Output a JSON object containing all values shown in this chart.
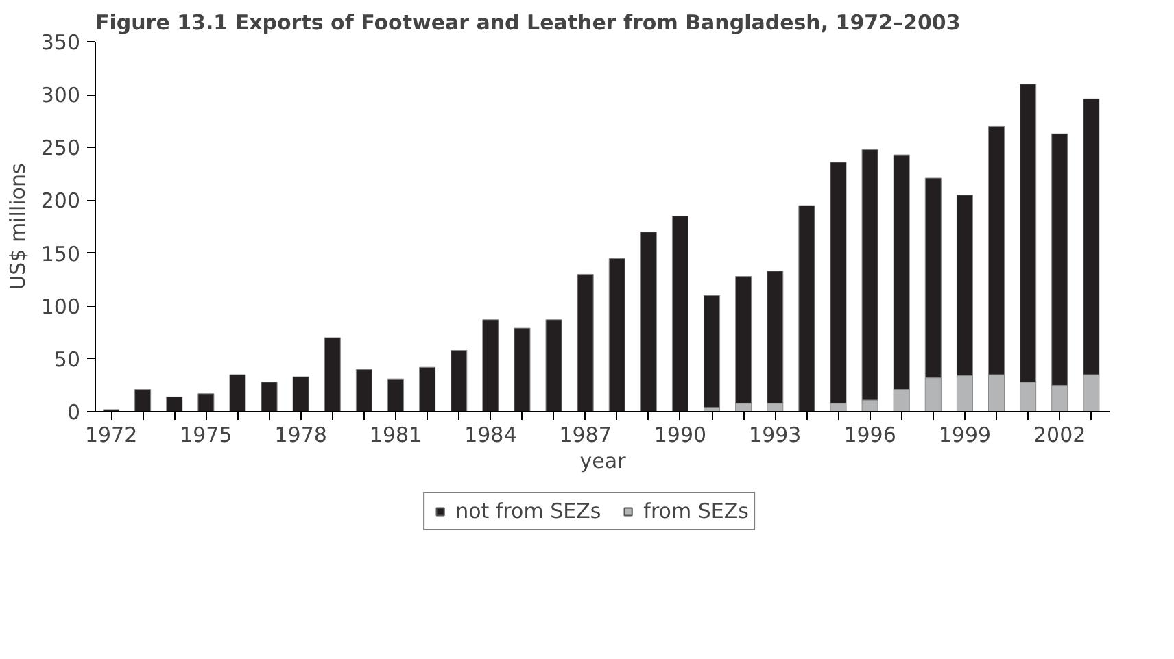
{
  "chart_data": {
    "type": "bar",
    "title": "Figure 13.1  Exports of Footwear and Leather from Bangladesh, 1972–2003",
    "xlabel": "year",
    "ylabel": "US$ millions",
    "stacked": true,
    "legend": "bottom",
    "grid": false,
    "x": [
      1972,
      1973,
      1974,
      1975,
      1976,
      1977,
      1978,
      1979,
      1980,
      1981,
      1982,
      1983,
      1984,
      1985,
      1986,
      1987,
      1988,
      1989,
      1990,
      1991,
      1992,
      1993,
      1994,
      1995,
      1996,
      1997,
      1998,
      1999,
      2000,
      2001,
      2002,
      2003
    ],
    "xlim": [
      1971.5,
      2003.6
    ],
    "xticks": [
      1972,
      {
        "value": 1973,
        "label": null
      },
      {
        "value": 1974,
        "label": null
      },
      1975,
      {
        "value": 1976,
        "label": null
      },
      {
        "value": 1977,
        "label": null
      },
      1978,
      {
        "value": 1979,
        "label": null
      },
      {
        "value": 1980,
        "label": null
      },
      1981,
      {
        "value": 1982,
        "label": null
      },
      {
        "value": 1983,
        "label": null
      },
      1984,
      {
        "value": 1985,
        "label": null
      },
      {
        "value": 1986,
        "label": null
      },
      1987,
      {
        "value": 1988,
        "label": null
      },
      {
        "value": 1989,
        "label": null
      },
      1990,
      {
        "value": 1991,
        "label": null
      },
      {
        "value": 1992,
        "label": null
      },
      1993,
      {
        "value": 1994,
        "label": null
      },
      {
        "value": 1995,
        "label": null
      },
      1996,
      {
        "value": 1997,
        "label": null
      },
      {
        "value": 1998,
        "label": null
      },
      1999,
      {
        "value": 2000,
        "label": null
      },
      {
        "value": 2001,
        "label": null
      },
      2002,
      {
        "value": 2003,
        "label": null
      }
    ],
    "ylim": [
      0,
      350
    ],
    "yticks": [
      0,
      50,
      100,
      150,
      200,
      250,
      300,
      350
    ],
    "series": [
      {
        "name": "from SEZs",
        "color": "#b3b5b7",
        "values": [
          0,
          0,
          0,
          0,
          0,
          0,
          0,
          0,
          0,
          0,
          0,
          0,
          0,
          0,
          0,
          0,
          0,
          0,
          0,
          4,
          8,
          8,
          0,
          8,
          11,
          21,
          32,
          34,
          35,
          28,
          25,
          35
        ]
      },
      {
        "name": "not from SEZs",
        "color": "#231f20",
        "values": [
          2,
          21,
          14,
          17,
          35,
          28,
          33,
          70,
          40,
          31,
          42,
          58,
          87,
          79,
          87,
          130,
          145,
          170,
          185,
          106,
          120,
          125,
          195,
          228,
          237,
          222,
          189,
          171,
          235,
          282,
          238,
          261
        ]
      }
    ]
  }
}
